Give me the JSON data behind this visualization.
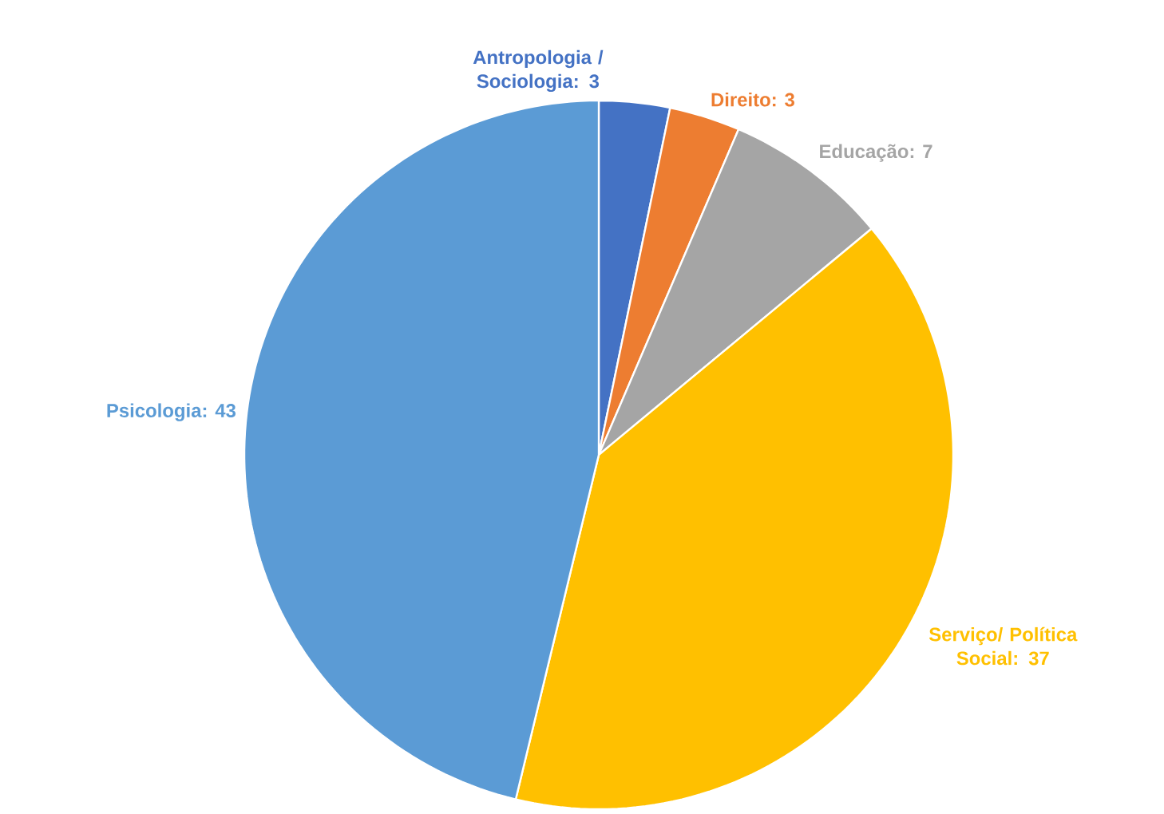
{
  "chart_data": {
    "type": "pie",
    "categories": [
      "Antropologia / Sociologia",
      "Direito",
      "Educação",
      "Serviço/ Política Social",
      "Psicologia"
    ],
    "values": [
      3,
      3,
      7,
      37,
      43
    ],
    "colors": [
      "#4472c4",
      "#ed7d31",
      "#a5a5a5",
      "#ffc000",
      "#5b9bd5"
    ],
    "value_labels": [
      ": 3",
      ": 3",
      ": 7",
      ": 37",
      ": 43"
    ]
  }
}
